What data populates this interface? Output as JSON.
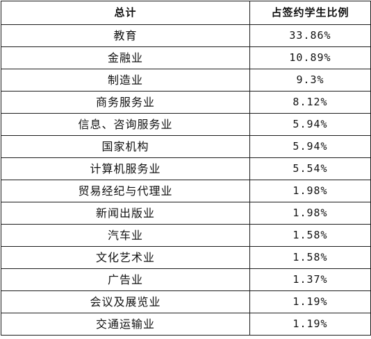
{
  "table": {
    "headers": [
      "总计",
      "占签约学生比例"
    ],
    "rows": [
      {
        "industry": "教育",
        "share": "33.86%"
      },
      {
        "industry": "金融业",
        "share": "10.89%"
      },
      {
        "industry": "制造业",
        "share": "9.3%"
      },
      {
        "industry": "商务服务业",
        "share": "8.12%"
      },
      {
        "industry": "信息、咨询服务业",
        "share": "5.94%"
      },
      {
        "industry": "国家机构",
        "share": "5.94%"
      },
      {
        "industry": "计算机服务业",
        "share": "5.54%"
      },
      {
        "industry": "贸易经纪与代理业",
        "share": "1.98%"
      },
      {
        "industry": "新闻出版业",
        "share": "1.98%"
      },
      {
        "industry": "汽车业",
        "share": "1.58%"
      },
      {
        "industry": "文化艺术业",
        "share": "1.58%"
      },
      {
        "industry": "广告业",
        "share": "1.37%"
      },
      {
        "industry": "会议及展览业",
        "share": "1.19%"
      },
      {
        "industry": "交通运输业",
        "share": "1.19%"
      }
    ]
  }
}
